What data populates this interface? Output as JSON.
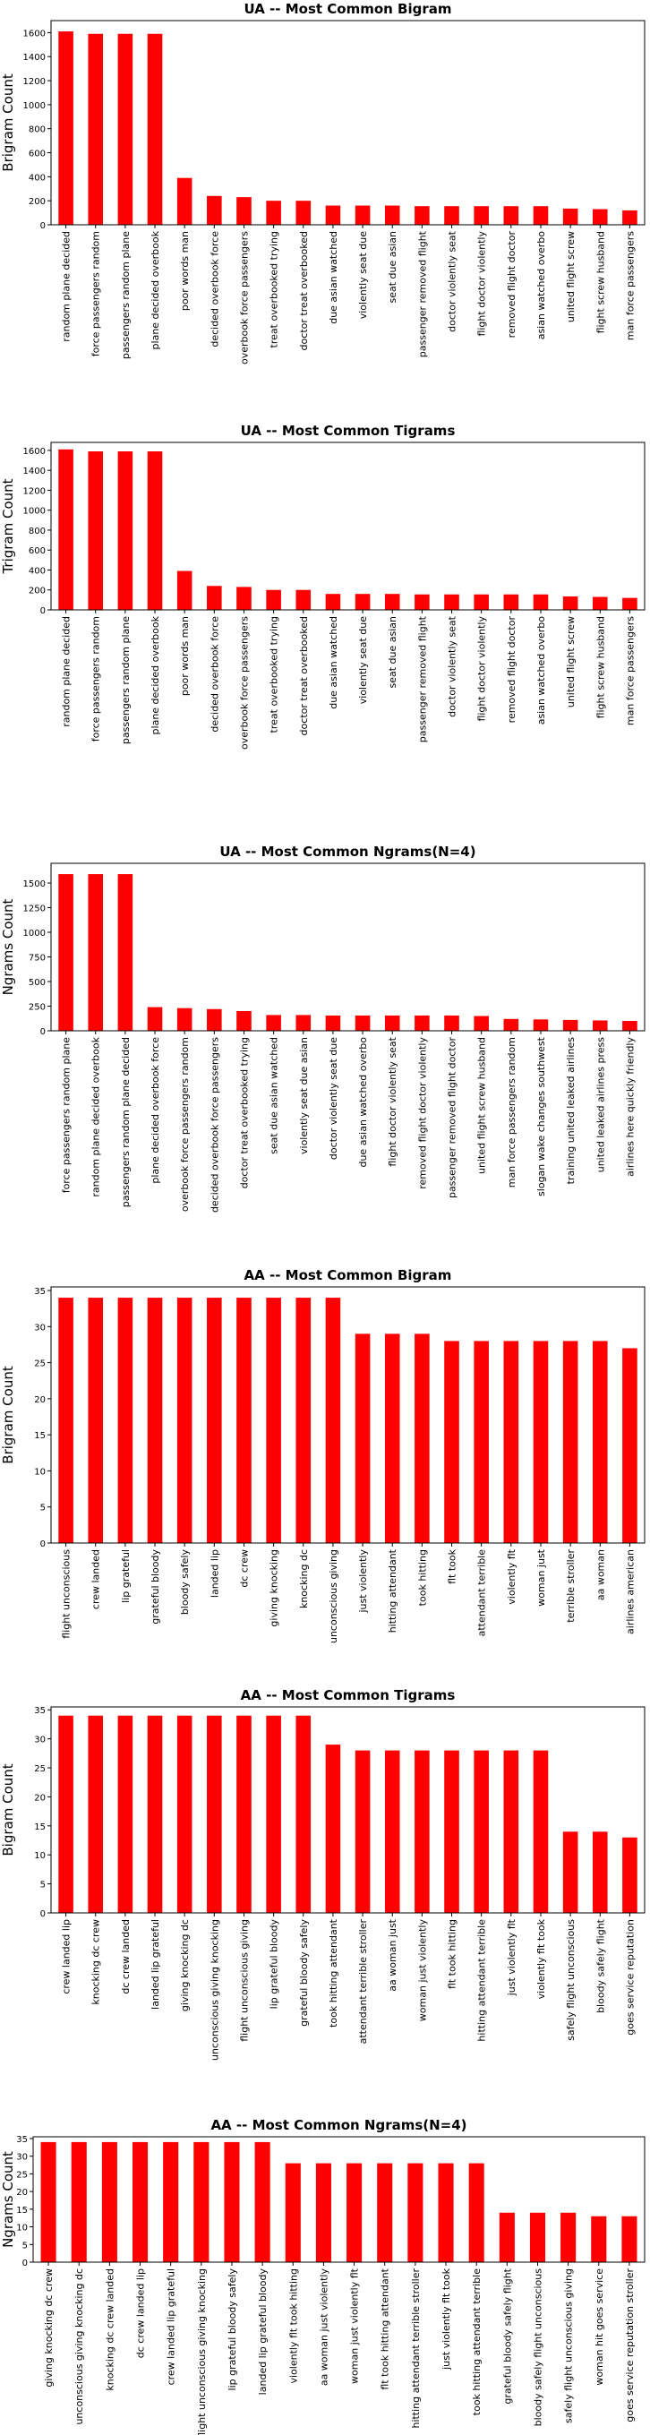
{
  "bar_color": "#ff0000",
  "chart_data": [
    {
      "type": "bar",
      "title": "UA -- Most Common Bigram",
      "ylabel": "Brigram Count",
      "ylim": [
        0,
        1700
      ],
      "yticks": [
        0,
        200,
        400,
        600,
        800,
        1000,
        1200,
        1400,
        1600
      ],
      "categories": [
        "random plane decided",
        "force passengers random",
        "passengers random plane",
        "plane decided overbook",
        "poor words man",
        "decided overbook force",
        "overbook force passengers",
        "treat overbooked trying",
        "doctor treat overbooked",
        "due asian watched",
        "violently seat due",
        "seat due asian",
        "passenger removed flight",
        "doctor violently seat",
        "flight doctor violently",
        "removed flight doctor",
        "asian watched overbo",
        "united flight screw",
        "flight screw husband",
        "man force passengers"
      ],
      "values": [
        1610,
        1590,
        1590,
        1590,
        390,
        240,
        230,
        200,
        200,
        160,
        160,
        160,
        155,
        155,
        155,
        155,
        155,
        135,
        130,
        120
      ]
    },
    {
      "type": "bar",
      "title": "UA --  Most Common Tigrams",
      "ylabel": "Trigram Count",
      "ylim": [
        0,
        1680
      ],
      "yticks": [
        0,
        200,
        400,
        600,
        800,
        1000,
        1200,
        1400,
        1600
      ],
      "categories": [
        "random plane decided",
        "force passengers random",
        "passengers random plane",
        "plane decided overbook",
        "poor words man",
        "decided overbook force",
        "overbook force passengers",
        "treat overbooked trying",
        "doctor treat overbooked",
        "due asian watched",
        "violently seat due",
        "seat due asian",
        "passenger removed flight",
        "doctor violently seat",
        "flight doctor violently",
        "removed flight doctor",
        "asian watched overbo",
        "united flight screw",
        "flight screw husband",
        "man force passengers"
      ],
      "values": [
        1610,
        1590,
        1590,
        1590,
        390,
        240,
        230,
        200,
        200,
        160,
        160,
        160,
        155,
        155,
        155,
        155,
        155,
        135,
        130,
        120
      ]
    },
    {
      "type": "bar",
      "title": "UA -- Most Common Ngrams(N=4)",
      "ylabel": "Ngrams Count",
      "ylim": [
        0,
        1700
      ],
      "yticks": [
        0,
        250,
        500,
        750,
        1000,
        1250,
        1500
      ],
      "categories": [
        "force passengers random plane",
        "random plane decided overbook",
        "passengers random plane decided",
        "plane decided overbook force",
        "overbook force passengers random",
        "decided overbook force passengers",
        "doctor treat overbooked trying",
        "seat due asian watched",
        "violently seat due asian",
        "doctor violently seat due",
        "due asian watched overbo",
        "flight doctor violently seat",
        "removed flight doctor violently",
        "passenger removed flight doctor",
        "united flight screw husband",
        "man force passengers random",
        "slogan wake changes southwest",
        "training united leaked airlines",
        "united leaked airlines press",
        "airlines here quickly friendly"
      ],
      "values": [
        1590,
        1590,
        1590,
        240,
        230,
        220,
        200,
        160,
        160,
        155,
        155,
        155,
        155,
        155,
        150,
        120,
        115,
        110,
        105,
        100
      ]
    },
    {
      "type": "bar",
      "title": "AA -- Most Common Bigram",
      "ylabel": "Brigram Count",
      "ylim": [
        0,
        35.5
      ],
      "yticks": [
        0,
        5,
        10,
        15,
        20,
        25,
        30,
        35
      ],
      "categories": [
        "flight unconscious",
        "crew landed",
        "lip grateful",
        "grateful bloody",
        "bloody safely",
        "landed lip",
        "dc crew",
        "giving knocking",
        "knocking dc",
        "unconscious giving",
        "just violently",
        "hitting attendant",
        "took hitting",
        "flt took",
        "attendant terrible",
        "violently flt",
        "woman just",
        "terrible stroller",
        "aa woman",
        "airlines american"
      ],
      "values": [
        34,
        34,
        34,
        34,
        34,
        34,
        34,
        34,
        34,
        34,
        29,
        29,
        29,
        28,
        28,
        28,
        28,
        28,
        28,
        27
      ]
    },
    {
      "type": "bar",
      "title": "AA -- Most Common Tigrams",
      "ylabel": "Bigram Count",
      "ylim": [
        0,
        35.5
      ],
      "yticks": [
        0,
        5,
        10,
        15,
        20,
        25,
        30,
        35
      ],
      "categories": [
        "crew landed lip",
        "knocking dc crew",
        "dc crew landed",
        "landed lip grateful",
        "giving knocking dc",
        "unconscious giving knocking",
        "flight unconscious giving",
        "lip grateful bloody",
        "grateful bloody safely",
        "took hitting attendant",
        "attendant terrible stroller",
        "aa woman just",
        "woman just violently",
        "flt took hitting",
        "hitting attendant terrible",
        "just violently flt",
        "violently flt took",
        "safely flight unconscious",
        "bloody safely flight",
        "goes service reputation"
      ],
      "values": [
        34,
        34,
        34,
        34,
        34,
        34,
        34,
        34,
        34,
        29,
        28,
        28,
        28,
        28,
        28,
        28,
        28,
        14,
        14,
        13
      ]
    },
    {
      "type": "bar",
      "title": "AA -- Most Common Ngrams(N=4)",
      "ylabel": "Ngrams Count",
      "ylim": [
        0,
        35.5
      ],
      "yticks": [
        0,
        5,
        10,
        15,
        20,
        25,
        30,
        35
      ],
      "categories": [
        "giving knocking dc crew",
        "unconscious giving knocking dc",
        "knocking dc crew landed",
        "dc crew landed lip",
        "crew landed lip grateful",
        "flight unconscious giving knocking",
        "lip grateful bloody safely",
        "landed lip grateful bloody",
        "violently flt took hitting",
        "aa woman just violently",
        "woman just violently flt",
        "flt took hitting attendant",
        "hitting attendant terrible stroller",
        "just violently flt took",
        "took hitting attendant terrible",
        "grateful bloody safely flight",
        "bloody safely flight unconscious",
        "safely flight unconscious giving",
        "woman hit goes service",
        "goes service reputation stroller"
      ],
      "values": [
        34,
        34,
        34,
        34,
        34,
        34,
        34,
        34,
        28,
        28,
        28,
        28,
        28,
        28,
        28,
        14,
        14,
        14,
        13,
        13
      ]
    }
  ]
}
